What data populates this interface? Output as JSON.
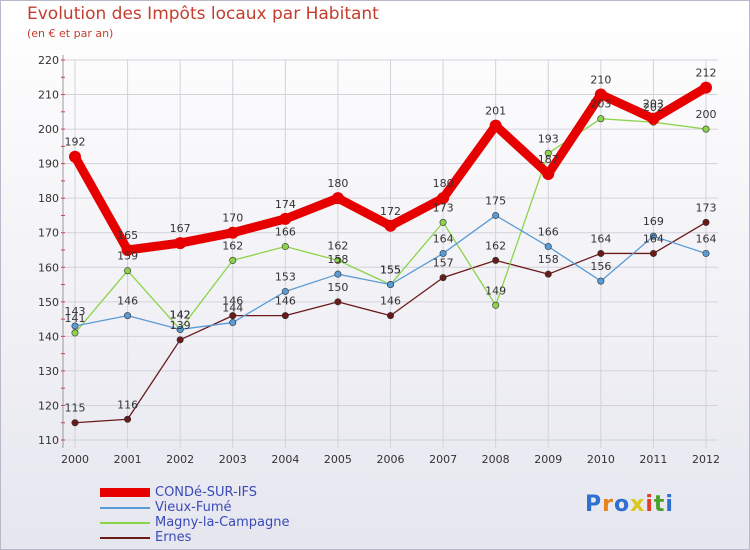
{
  "header": {
    "title": "Evolution des Impôts locaux par Habitant",
    "subtitle": "(en € et par an)"
  },
  "logo": {
    "text": "Proxiti"
  },
  "chart_data": {
    "type": "line",
    "title": "Evolution des Impôts locaux par Habitant",
    "subtitle": "(en € et par an)",
    "xlabel": "",
    "ylabel": "",
    "x": [
      "2000",
      "2001",
      "2002",
      "2003",
      "2004",
      "2005",
      "2006",
      "2007",
      "2008",
      "2009",
      "2010",
      "2011",
      "2012"
    ],
    "ylim": [
      110,
      220
    ],
    "yticks": [
      110,
      120,
      130,
      140,
      150,
      160,
      170,
      180,
      190,
      200,
      210,
      220
    ],
    "grid": true,
    "legend_position": "bottom-left",
    "series": [
      {
        "name": "CONDé-SUR-IFS",
        "color": "#e60000",
        "emphasis": true,
        "values": [
          192,
          165,
          167,
          170,
          174,
          180,
          172,
          180,
          201,
          187,
          210,
          203,
          212
        ],
        "labels": [
          "192",
          "165",
          "167",
          "170",
          "174",
          "180",
          "172",
          "180",
          "201",
          "187",
          "210",
          "203",
          "212"
        ]
      },
      {
        "name": "Vieux-Fumé",
        "color": "#5b9bd5",
        "values": [
          143,
          146,
          142,
          144,
          153,
          158,
          155,
          164,
          175,
          166,
          156,
          169,
          164
        ],
        "labels": [
          "143",
          "146",
          "142",
          "144",
          "153",
          "158",
          "155",
          "164",
          "175",
          "166",
          "156",
          "169",
          "164"
        ]
      },
      {
        "name": "Magny-la-Campagne",
        "color": "#8dd34a",
        "values": [
          141,
          159,
          142,
          162,
          166,
          162,
          155,
          173,
          149,
          193,
          203,
          202,
          200
        ],
        "labels": [
          "141",
          "159",
          "142",
          "162",
          "166",
          "162",
          "155",
          "173",
          "149",
          "193",
          "203",
          "202",
          "200"
        ]
      },
      {
        "name": "Ernes",
        "color": "#6b1a1a",
        "values": [
          115,
          116,
          139,
          146,
          146,
          150,
          146,
          157,
          162,
          158,
          164,
          164,
          173
        ],
        "labels": [
          "115",
          "116",
          "139",
          "146",
          "146",
          "150",
          "146",
          "157",
          "162",
          "158",
          "164",
          "164",
          "173"
        ]
      }
    ]
  }
}
